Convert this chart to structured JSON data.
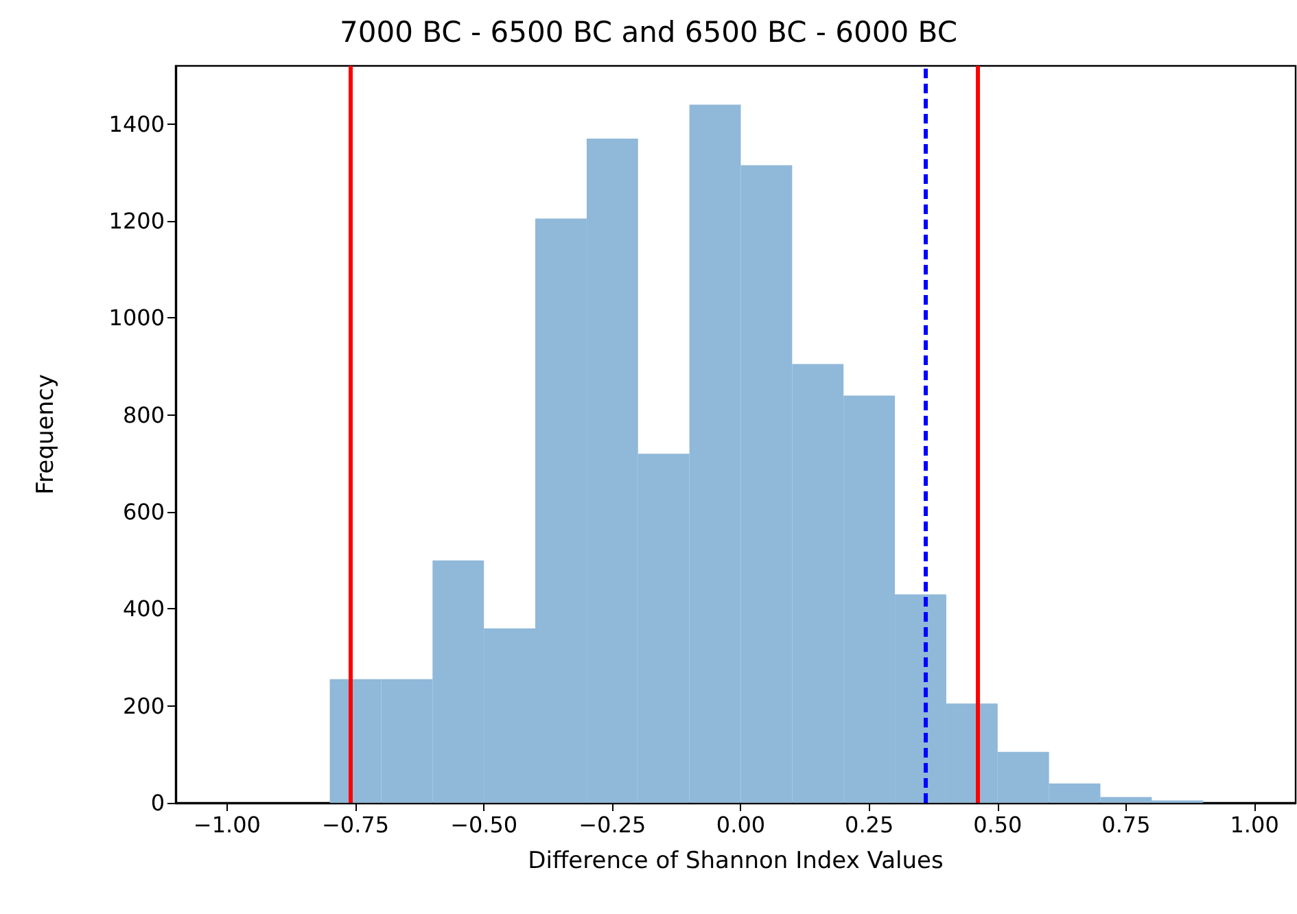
{
  "chart_data": {
    "type": "histogram",
    "title": "7000 BC - 6500 BC and 6500 BC - 6000 BC",
    "xlabel": "Difference of Shannon Index Values",
    "ylabel": "Frequency",
    "bins": [
      -0.8,
      -0.7,
      -0.6,
      -0.5,
      -0.4,
      -0.3,
      -0.2,
      -0.1,
      0.0,
      0.1,
      0.2,
      0.3,
      0.4,
      0.5,
      0.6,
      0.7,
      0.8,
      0.9
    ],
    "values": [
      255,
      255,
      500,
      360,
      1205,
      1370,
      720,
      1440,
      1315,
      905,
      840,
      430,
      205,
      105,
      40,
      12,
      5
    ],
    "color": "#8fb8d9",
    "xlim": [
      -1.1,
      1.08
    ],
    "xticks": [
      {
        "value": -1.0,
        "label": "−1.00"
      },
      {
        "value": -0.75,
        "label": "−0.75"
      },
      {
        "value": -0.5,
        "label": "−0.50"
      },
      {
        "value": -0.25,
        "label": "−0.25"
      },
      {
        "value": 0.0,
        "label": "0.00"
      },
      {
        "value": 0.25,
        "label": "0.25"
      },
      {
        "value": 0.5,
        "label": "0.50"
      },
      {
        "value": 0.75,
        "label": "0.75"
      },
      {
        "value": 1.0,
        "label": "1.00"
      }
    ],
    "ylim": [
      0,
      1520
    ],
    "yticks": [
      0,
      200,
      400,
      600,
      800,
      1000,
      1200,
      1400
    ],
    "ref_lines": [
      {
        "axis": "x",
        "value": -0.76,
        "color": "#ff0000",
        "line_style": "solid"
      },
      {
        "axis": "x",
        "value": 0.36,
        "color": "#0000ff",
        "line_style": "dashed"
      },
      {
        "axis": "x",
        "value": 0.46,
        "color": "#ff0000",
        "line_style": "solid"
      }
    ],
    "grid": false
  }
}
